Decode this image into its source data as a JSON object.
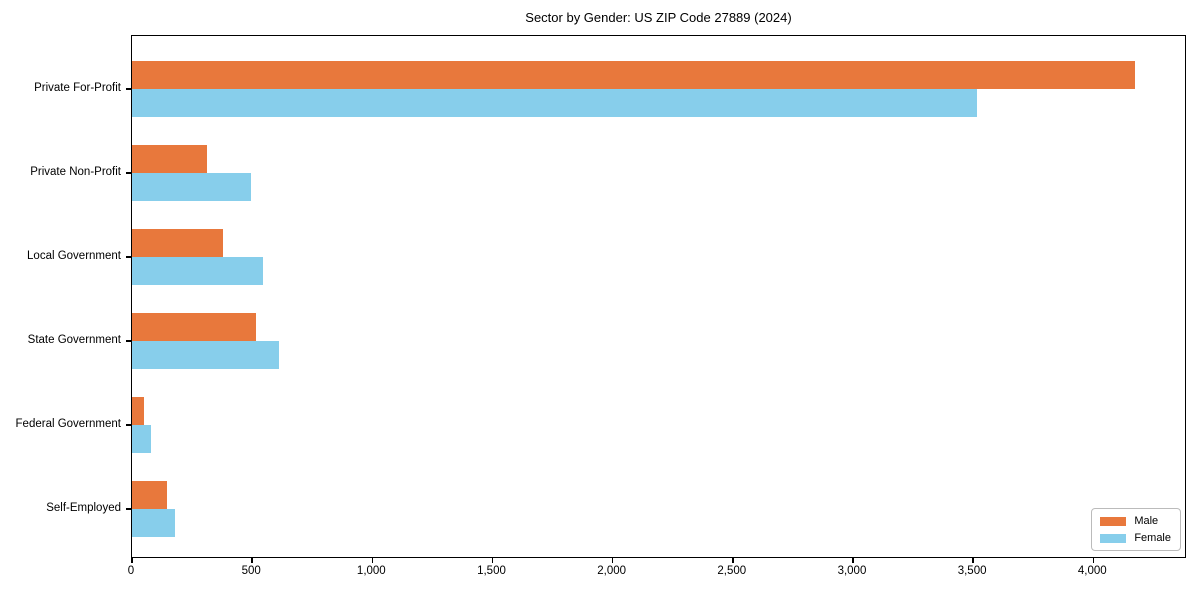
{
  "chart_data": {
    "type": "bar",
    "orientation": "horizontal",
    "title": "Sector by Gender: US ZIP Code 27889 (2024)",
    "categories": [
      "Private For-Profit",
      "Private Non-Profit",
      "Local Government",
      "State Government",
      "Federal Government",
      "Self-Employed"
    ],
    "series": [
      {
        "name": "Male",
        "color": "#E8783C",
        "values": [
          4175,
          310,
          380,
          515,
          50,
          145
        ]
      },
      {
        "name": "Female",
        "color": "#87CEEB",
        "values": [
          3515,
          495,
          545,
          610,
          80,
          180
        ]
      }
    ],
    "xlabel": "",
    "ylabel": "",
    "xlim": [
      0,
      4390
    ],
    "x_ticks": [
      0,
      500,
      1000,
      1500,
      2000,
      2500,
      3000,
      3500,
      4000
    ],
    "x_tick_labels": [
      "0",
      "500",
      "1,000",
      "1,500",
      "2,000",
      "2,500",
      "3,000",
      "3,500",
      "4,000"
    ],
    "legend_position": "lower right",
    "grid": false,
    "background_color": "#ffffff",
    "spine_color": "#000000"
  }
}
